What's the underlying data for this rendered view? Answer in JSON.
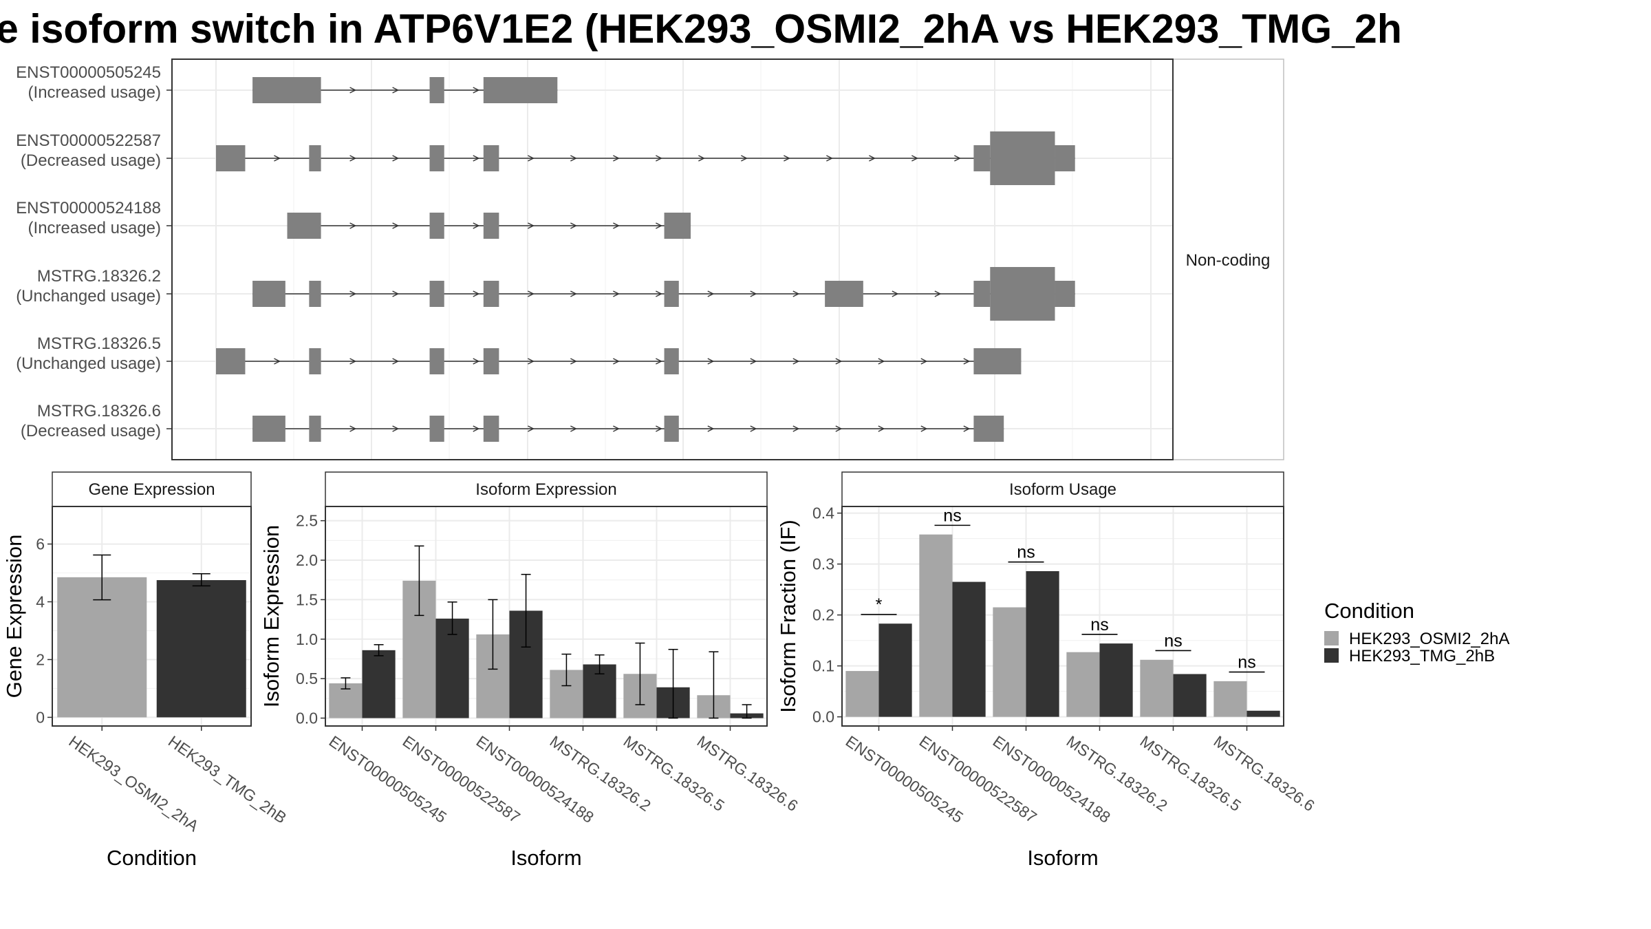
{
  "title": "e isoform switch in ATP6V1E2 (HEK293_OSMI2_2hA vs HEK293_TMG_2h",
  "colors": {
    "osmi": "#a6a6a6",
    "tmg": "#333333",
    "exon": "#808080",
    "grid": "#ebebeb"
  },
  "transcripts": {
    "facet_label": "Non-coding",
    "rows": [
      {
        "id": "ENST00000505245",
        "usage": "(Increased usage)",
        "exons": [
          [
            0.04,
            0.115,
            "t"
          ],
          [
            0.234,
            0.25,
            "t"
          ],
          [
            0.293,
            0.374,
            "t"
          ]
        ]
      },
      {
        "id": "ENST00000522587",
        "usage": "(Decreased usage)",
        "exons": [
          [
            0.0,
            0.032,
            "t"
          ],
          [
            0.102,
            0.115,
            "t"
          ],
          [
            0.234,
            0.25,
            "t"
          ],
          [
            0.293,
            0.31,
            "t"
          ],
          [
            0.83,
            0.848,
            "m"
          ],
          [
            0.848,
            0.919,
            "w"
          ],
          [
            0.919,
            0.941,
            "m"
          ]
        ]
      },
      {
        "id": "ENST00000524188",
        "usage": "(Increased usage)",
        "exons": [
          [
            0.078,
            0.115,
            "t"
          ],
          [
            0.234,
            0.25,
            "t"
          ],
          [
            0.293,
            0.31,
            "t"
          ],
          [
            0.491,
            0.52,
            "t"
          ]
        ]
      },
      {
        "id": "MSTRG.18326.2",
        "usage": "(Unchanged usage)",
        "exons": [
          [
            0.04,
            0.076,
            "t"
          ],
          [
            0.102,
            0.115,
            "t"
          ],
          [
            0.234,
            0.25,
            "t"
          ],
          [
            0.293,
            0.31,
            "t"
          ],
          [
            0.491,
            0.507,
            "t"
          ],
          [
            0.667,
            0.709,
            "t"
          ],
          [
            0.83,
            0.848,
            "m"
          ],
          [
            0.848,
            0.919,
            "w"
          ],
          [
            0.919,
            0.941,
            "m"
          ]
        ]
      },
      {
        "id": "MSTRG.18326.5",
        "usage": "(Unchanged usage)",
        "exons": [
          [
            0.0,
            0.032,
            "t"
          ],
          [
            0.102,
            0.115,
            "t"
          ],
          [
            0.234,
            0.25,
            "t"
          ],
          [
            0.293,
            0.31,
            "t"
          ],
          [
            0.491,
            0.507,
            "t"
          ],
          [
            0.83,
            0.882,
            "t"
          ]
        ]
      },
      {
        "id": "MSTRG.18326.6",
        "usage": "(Decreased usage)",
        "exons": [
          [
            0.04,
            0.076,
            "t"
          ],
          [
            0.102,
            0.115,
            "t"
          ],
          [
            0.234,
            0.25,
            "t"
          ],
          [
            0.293,
            0.31,
            "t"
          ],
          [
            0.491,
            0.507,
            "t"
          ],
          [
            0.83,
            0.863,
            "t"
          ]
        ]
      }
    ]
  },
  "legend": {
    "title": "Condition",
    "items": [
      "HEK293_OSMI2_2hA",
      "HEK293_TMG_2hB"
    ]
  },
  "chart_data": [
    {
      "type": "bar",
      "title": "Gene Expression",
      "xlabel": "Condition",
      "ylabel": "Gene Expression",
      "ylim": [
        -0.3,
        7.3
      ],
      "yticks": [
        "0",
        "2",
        "4",
        "6"
      ],
      "categories": [
        "HEK293_OSMI2_2hA",
        "HEK293_TMG_2hB"
      ],
      "values": [
        4.85,
        4.75
      ],
      "error": [
        [
          4.07,
          5.62
        ],
        [
          4.55,
          4.97
        ]
      ]
    },
    {
      "type": "bar",
      "title": "Isoform Expression",
      "xlabel": "Isoform",
      "ylabel": "Isoform Expression",
      "ylim": [
        -0.1,
        2.68
      ],
      "yticks": [
        "0.0",
        "0.5",
        "1.0",
        "1.5",
        "2.0",
        "2.5"
      ],
      "categories": [
        "ENST00000505245",
        "ENST00000522587",
        "ENST00000524188",
        "MSTRG.18326.2",
        "MSTRG.18326.5",
        "MSTRG.18326.6"
      ],
      "series": [
        {
          "name": "HEK293_OSMI2_2hA",
          "values": [
            0.44,
            1.74,
            1.06,
            0.61,
            0.56,
            0.29
          ],
          "error": [
            [
              0.37,
              0.51
            ],
            [
              1.3,
              2.18
            ],
            [
              0.62,
              1.5
            ],
            [
              0.41,
              0.81
            ],
            [
              0.17,
              0.95
            ],
            [
              0.0,
              0.84
            ]
          ]
        },
        {
          "name": "HEK293_TMG_2hB",
          "values": [
            0.86,
            1.26,
            1.36,
            0.68,
            0.39,
            0.06
          ],
          "error": [
            [
              0.79,
              0.93
            ],
            [
              1.06,
              1.47
            ],
            [
              0.9,
              1.82
            ],
            [
              0.56,
              0.8
            ],
            [
              0.0,
              0.87
            ],
            [
              0.0,
              0.17
            ]
          ]
        }
      ]
    },
    {
      "type": "bar",
      "title": "Isoform Usage",
      "xlabel": "Isoform",
      "ylabel": "Isoform Fraction (IF)",
      "ylim": [
        -0.018,
        0.413
      ],
      "yticks": [
        "0.0",
        "0.1",
        "0.2",
        "0.3",
        "0.4"
      ],
      "categories": [
        "ENST00000505245",
        "ENST00000522587",
        "ENST00000524188",
        "MSTRG.18326.2",
        "MSTRG.18326.5",
        "MSTRG.18326.6"
      ],
      "series": [
        {
          "name": "HEK293_OSMI2_2hA",
          "values": [
            0.09,
            0.358,
            0.215,
            0.127,
            0.112,
            0.07
          ]
        },
        {
          "name": "HEK293_TMG_2hB",
          "values": [
            0.183,
            0.265,
            0.286,
            0.144,
            0.084,
            0.012
          ]
        }
      ],
      "significance": [
        {
          "label": "*",
          "y": 0.201
        },
        {
          "label": "ns",
          "y": 0.376
        },
        {
          "label": "ns",
          "y": 0.304
        },
        {
          "label": "ns",
          "y": 0.162
        },
        {
          "label": "ns",
          "y": 0.13
        },
        {
          "label": "ns",
          "y": 0.088
        }
      ]
    }
  ]
}
